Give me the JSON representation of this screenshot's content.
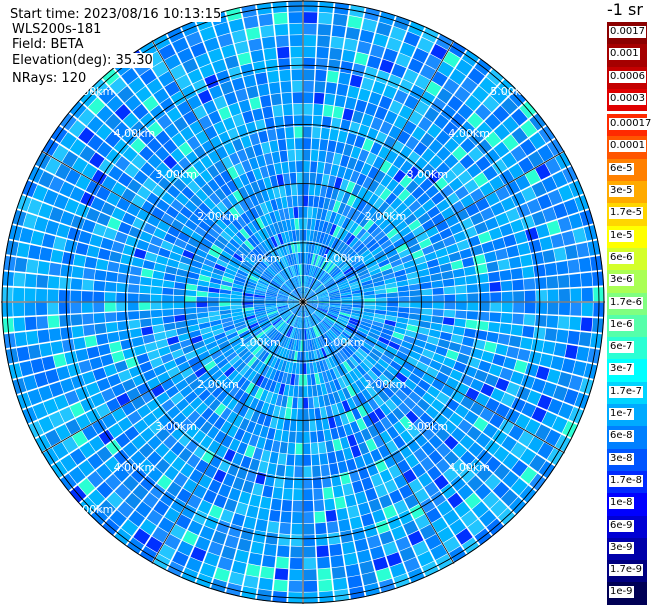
{
  "info": {
    "start_time": "Start time: 2023/08/16 10:13:15",
    "radar": "WLS200s-181",
    "field": "Field: BETA",
    "elevation": "Elevation(deg): 35.30",
    "nrays": "NRays: 120"
  },
  "colorbar": {
    "units": "-1 sr",
    "upper": [
      {
        "label": "0.0017",
        "color": "#8b0000"
      },
      {
        "label": "0.001",
        "color": "#a50000"
      },
      {
        "label": "0.0006",
        "color": "#c40000"
      },
      {
        "label": "0.0003",
        "color": "#e00000"
      }
    ],
    "lower": [
      {
        "label": "0.00017",
        "color": "#ff2a00"
      },
      {
        "label": "0.0001",
        "color": "#ff5500"
      },
      {
        "label": "6e-5",
        "color": "#ff8000"
      },
      {
        "label": "3e-5",
        "color": "#ffaa00"
      },
      {
        "label": "1.7e-5",
        "color": "#ffd500"
      },
      {
        "label": "1e-5",
        "color": "#ffff00"
      },
      {
        "label": "6e-6",
        "color": "#d4ff2a"
      },
      {
        "label": "3e-6",
        "color": "#aaff55"
      },
      {
        "label": "1.7e-6",
        "color": "#80ff80"
      },
      {
        "label": "1e-6",
        "color": "#55ffaa"
      },
      {
        "label": "6e-7",
        "color": "#2affd4"
      },
      {
        "label": "3e-7",
        "color": "#00ffff"
      },
      {
        "label": "1.7e-7",
        "color": "#00d4ff"
      },
      {
        "label": "1e-7",
        "color": "#00aaff"
      },
      {
        "label": "6e-8",
        "color": "#0080ff"
      },
      {
        "label": "3e-8",
        "color": "#0055ff"
      },
      {
        "label": "1.7e-8",
        "color": "#002aff"
      },
      {
        "label": "1e-8",
        "color": "#0000ff"
      },
      {
        "label": "6e-9",
        "color": "#0000d4"
      },
      {
        "label": "3e-9",
        "color": "#0000aa"
      },
      {
        "label": "1.7e-9",
        "color": "#000080"
      },
      {
        "label": "1e-9",
        "color": "#000055"
      }
    ]
  },
  "range_rings": {
    "labels": [
      "1.00km",
      "2.00km",
      "3.00km",
      "4.00km",
      "5.00km"
    ]
  }
}
